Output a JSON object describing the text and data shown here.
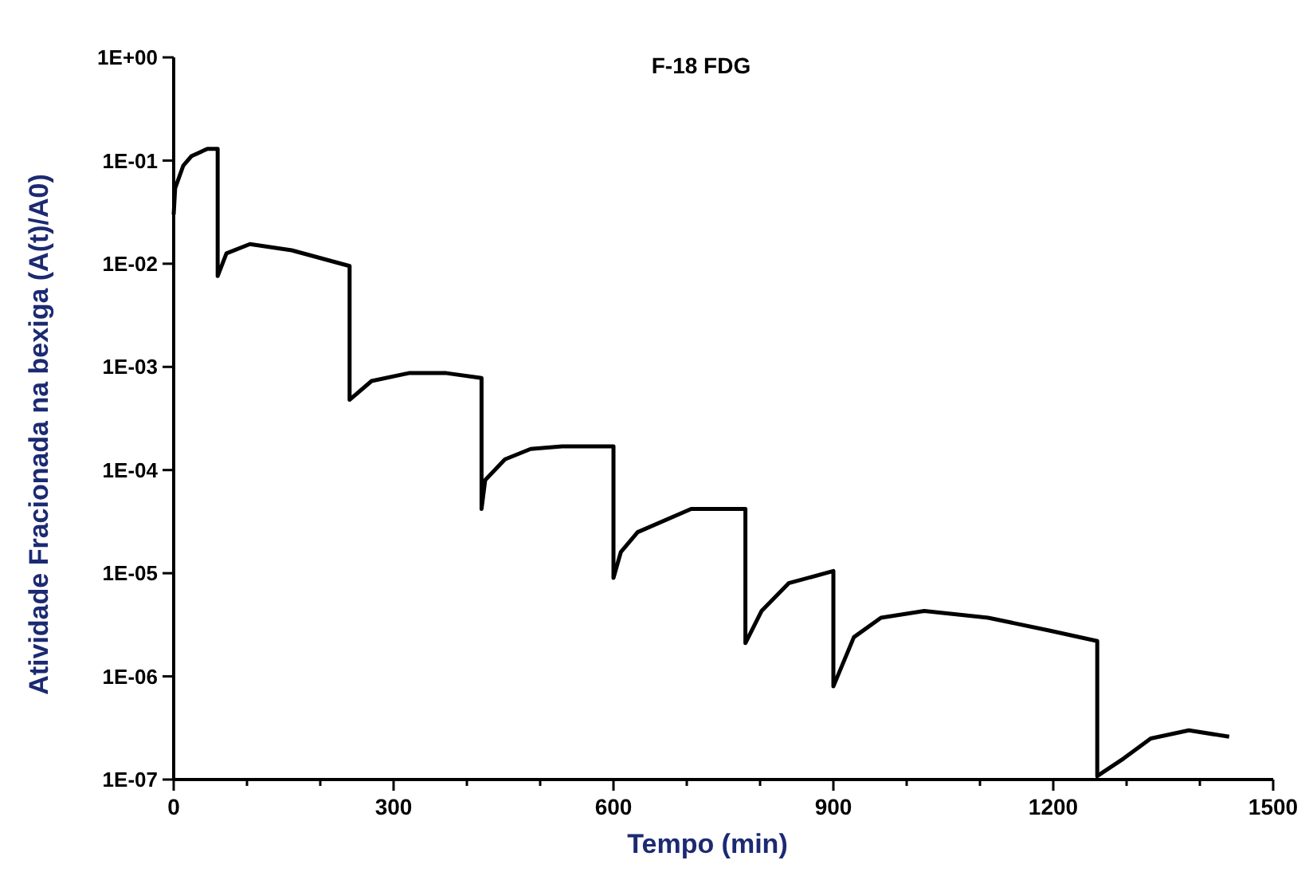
{
  "chart_data": {
    "type": "line",
    "title": "F-18 FDG",
    "xlabel": "Tempo (min)",
    "ylabel": "Atividade Fracionada na bexiga (A(t)/A0)",
    "log": "y",
    "grid": false,
    "marker": "none",
    "line_style": "solid",
    "xlim": [
      0,
      1500
    ],
    "xticks": [
      0,
      {
        "value": 100,
        "label": null
      },
      {
        "value": 200,
        "label": null
      },
      300,
      {
        "value": 400,
        "label": null
      },
      {
        "value": 500,
        "label": null
      },
      600,
      {
        "value": 700,
        "label": null
      },
      {
        "value": 800,
        "label": null
      },
      900,
      {
        "value": 1000,
        "label": null
      },
      {
        "value": 1100,
        "label": null
      },
      1200,
      {
        "value": 1300,
        "label": null
      },
      {
        "value": 1400,
        "label": null
      },
      1500
    ],
    "ylim": [
      1e-07,
      1
    ],
    "yticks": [
      {
        "value": 1,
        "label": "1E+00"
      },
      {
        "value": 0.1,
        "label": "1E-01"
      },
      {
        "value": 0.01,
        "label": "1E-02"
      },
      {
        "value": 0.001,
        "label": "1E-03"
      },
      {
        "value": 0.0001,
        "label": "1E-04"
      },
      {
        "value": 1e-05,
        "label": "1E-05"
      },
      {
        "value": 1e-06,
        "label": "1E-06"
      },
      {
        "value": 1e-07,
        "label": "1E-07"
      }
    ],
    "series": [
      {
        "color": "#000000",
        "x": [
          0,
          2,
          13,
          24,
          46,
          60,
          60,
          72,
          104,
          161,
          240,
          240,
          270,
          321,
          372,
          420,
          420,
          425,
          452,
          487,
          530,
          600,
          600,
          610,
          633,
          706,
          780,
          780,
          802,
          839,
          900,
          900,
          928,
          965,
          1024,
          1111,
          1193,
          1260,
          1260,
          1296,
          1333,
          1385,
          1440
        ],
        "values": [
          0.03,
          0.054,
          0.089,
          0.11,
          0.13,
          0.13,
          0.0076,
          0.0126,
          0.0155,
          0.0135,
          0.0095,
          0.00048,
          0.00073,
          0.00087,
          0.00087,
          0.00078,
          4.2e-05,
          8e-05,
          0.000127,
          0.00016,
          0.00017,
          0.00017,
          9e-06,
          1.6e-05,
          2.5e-05,
          4.2e-05,
          4.2e-05,
          2.1e-06,
          4.3e-06,
          8e-06,
          1.05e-05,
          8e-07,
          2.4e-06,
          3.7e-06,
          4.3e-06,
          3.7e-06,
          2.8e-06,
          2.2e-06,
          1.08e-07,
          1.6e-07,
          2.5e-07,
          3e-07,
          2.6e-07
        ]
      }
    ]
  }
}
